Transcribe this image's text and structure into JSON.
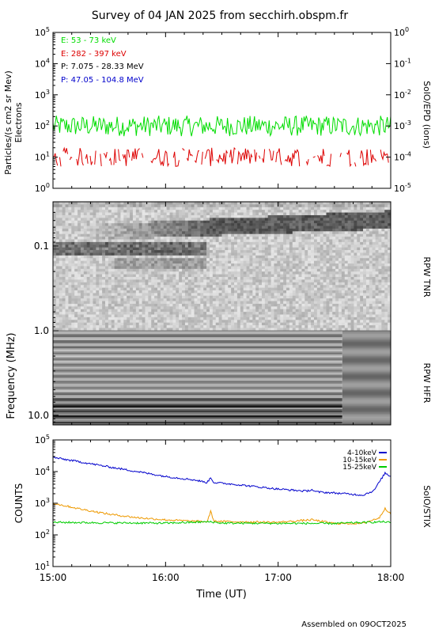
{
  "title": "Survey of 04 JAN 2025 from secchirh.obspm.fr",
  "footer": "Assembled on 09OCT2025",
  "colors": {
    "electron_low": "#00dd00",
    "electron_high": "#dd0000",
    "proton_low": "#000000",
    "proton_high": "#0000cc",
    "stix_low": "#0000cc",
    "stix_mid": "#ee9900",
    "stix_high": "#00cc00"
  },
  "chart_data": [
    {
      "type": "line",
      "panel": "epd",
      "ylabel": "Particles/(s cm2 sr Mev)",
      "ylabel2": "Electrons",
      "right_label": "SolO/EPD (ions)",
      "yscale": "log",
      "ylim": [
        1,
        100000
      ],
      "y_ticks": [
        {
          "label": "10",
          "exp": "0"
        },
        {
          "label": "10",
          "exp": "1"
        },
        {
          "label": "10",
          "exp": "2"
        },
        {
          "label": "10",
          "exp": "3"
        },
        {
          "label": "10",
          "exp": "4"
        },
        {
          "label": "10",
          "exp": "5"
        }
      ],
      "y2_ticks": [
        {
          "label": "10",
          "exp": "-5"
        },
        {
          "label": "10",
          "exp": "-4"
        },
        {
          "label": "10",
          "exp": "-3"
        },
        {
          "label": "10",
          "exp": "-2"
        },
        {
          "label": "10",
          "exp": "-1"
        },
        {
          "label": "10",
          "exp": "0"
        }
      ],
      "x_range_hours": [
        15,
        18
      ],
      "legend_position": "top-left",
      "series": [
        {
          "name": "E: 53 - 73 keV",
          "color_key": "electron_low",
          "level": 100,
          "spread": 0.55
        },
        {
          "name": "E: 282 - 397 keV",
          "color_key": "electron_high",
          "level": 10,
          "spread": 0.5
        },
        {
          "name": "P: 7.075 - 28.33 MeV",
          "color_key": "proton_low"
        },
        {
          "name": "P: 47.05 - 104.8 MeV",
          "color_key": "proton_high"
        }
      ]
    },
    {
      "type": "heatmap",
      "panel": "rpw",
      "ylabel": "Frequency (MHz)",
      "yscale": "log",
      "ylim": [
        0.03,
        13
      ],
      "y_ticks": [
        "0.1",
        "1.0",
        "10.0"
      ],
      "y_tick_values": [
        0.1,
        1.0,
        10.0
      ],
      "sub_panels": [
        {
          "label": "RPW TNR",
          "freq_range": [
            0.03,
            1.0
          ]
        },
        {
          "label": "RPW HFR",
          "freq_range": [
            1.0,
            13
          ]
        }
      ],
      "x_range_hours": [
        15,
        18
      ]
    },
    {
      "type": "line",
      "panel": "stix",
      "ylabel": "COUNTS",
      "right_label": "SolO/STIX",
      "yscale": "log",
      "ylim": [
        10,
        100000
      ],
      "y_ticks": [
        {
          "label": "10",
          "exp": "1"
        },
        {
          "label": "10",
          "exp": "2"
        },
        {
          "label": "10",
          "exp": "3"
        },
        {
          "label": "10",
          "exp": "4"
        },
        {
          "label": "10",
          "exp": "5"
        }
      ],
      "x_range_hours": [
        15,
        18
      ],
      "x_ticks": [
        "15:00",
        "16:00",
        "17:00",
        "18:00"
      ],
      "xlabel": "Time (UT)",
      "legend_position": "top-right",
      "series": [
        {
          "name": "4-10keV",
          "color_key": "stix_low",
          "points": [
            [
              15.0,
              28000
            ],
            [
              15.25,
              20000
            ],
            [
              15.5,
              14000
            ],
            [
              15.75,
              10000
            ],
            [
              16.0,
              7000
            ],
            [
              16.25,
              5500
            ],
            [
              16.37,
              4500
            ],
            [
              16.4,
              6500
            ],
            [
              16.43,
              4500
            ],
            [
              16.6,
              4000
            ],
            [
              16.75,
              3500
            ],
            [
              17.0,
              2800
            ],
            [
              17.25,
              2400
            ],
            [
              17.3,
              2700
            ],
            [
              17.33,
              2300
            ],
            [
              17.6,
              2000
            ],
            [
              17.75,
              1800
            ],
            [
              17.85,
              2500
            ],
            [
              17.95,
              9000
            ],
            [
              18.0,
              7000
            ]
          ]
        },
        {
          "name": "10-15keV",
          "color_key": "stix_mid",
          "points": [
            [
              15.0,
              1000
            ],
            [
              15.25,
              650
            ],
            [
              15.5,
              450
            ],
            [
              15.75,
              350
            ],
            [
              16.0,
              300
            ],
            [
              16.25,
              270
            ],
            [
              16.37,
              260
            ],
            [
              16.4,
              550
            ],
            [
              16.43,
              270
            ],
            [
              16.6,
              260
            ],
            [
              17.0,
              250
            ],
            [
              17.3,
              300
            ],
            [
              17.5,
              230
            ],
            [
              17.75,
              230
            ],
            [
              17.9,
              350
            ],
            [
              17.95,
              700
            ],
            [
              18.0,
              450
            ]
          ]
        },
        {
          "name": "15-25keV",
          "color_key": "stix_high",
          "points": [
            [
              15.0,
              250
            ],
            [
              15.5,
              240
            ],
            [
              16.0,
              235
            ],
            [
              16.4,
              260
            ],
            [
              16.5,
              235
            ],
            [
              17.0,
              232
            ],
            [
              17.5,
              230
            ],
            [
              17.95,
              260
            ],
            [
              18.0,
              240
            ]
          ]
        }
      ]
    }
  ]
}
